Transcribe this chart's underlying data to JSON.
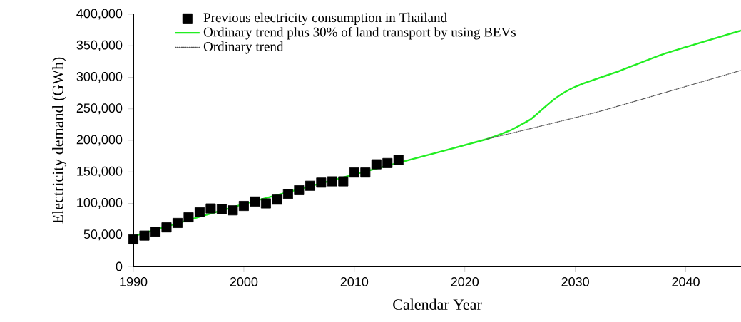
{
  "chart_data": {
    "type": "line",
    "xlabel": "Calendar Year",
    "ylabel": "Electricity demand (GWh)",
    "xlim": [
      1990,
      2045
    ],
    "ylim": [
      0,
      400000
    ],
    "xticks": [
      1990,
      2000,
      2010,
      2020,
      2030,
      2040
    ],
    "yticks": [
      0,
      {
        "value": 50000,
        "label": "50,000"
      },
      {
        "value": 100000,
        "label": "100,000"
      },
      {
        "value": 150000,
        "label": "150,000"
      },
      {
        "value": 200000,
        "label": "200,000"
      },
      {
        "value": 250000,
        "label": "250,000"
      },
      {
        "value": 300000,
        "label": "300,000"
      },
      {
        "value": 350000,
        "label": "350,000"
      },
      {
        "value": 400000,
        "label": "400,000"
      }
    ],
    "grid": false,
    "legend": "top left",
    "series": [
      {
        "name": "Previous electricity consumption in Thailand",
        "type": "scatter",
        "marker": "square",
        "color": "#000000",
        "x": [
          1990,
          1991,
          1992,
          1993,
          1994,
          1995,
          1996,
          1997,
          1998,
          1999,
          2000,
          2001,
          2002,
          2003,
          2004,
          2005,
          2006,
          2007,
          2008,
          2009,
          2010,
          2011,
          2012,
          2013,
          2014
        ],
        "values": [
          43000,
          49000,
          55000,
          62000,
          69000,
          78000,
          86000,
          92000,
          91000,
          89000,
          96000,
          103000,
          100000,
          106000,
          115000,
          121000,
          128000,
          133000,
          135000,
          135000,
          149000,
          149000,
          162000,
          164000,
          169000
        ]
      },
      {
        "name": "Ordinary trend plus 30% of land transport by using BEVs",
        "line_style": "solid",
        "color": "#22ee22",
        "x": [
          1990,
          2000,
          2010,
          2015,
          2022,
          2024,
          2025,
          2026,
          2027,
          2028,
          2029,
          2030,
          2031,
          2032,
          2034,
          2038,
          2045
        ],
        "values": [
          48000,
          99000,
          146000,
          169000,
          202000,
          215000,
          224000,
          234000,
          249000,
          264000,
          276000,
          285000,
          292000,
          298000,
          310000,
          337000,
          374000
        ]
      },
      {
        "name": "Ordinary trend",
        "line_style": "dotted",
        "color": "#555555",
        "x": [
          2022,
          2032,
          2045
        ],
        "values": [
          202000,
          245000,
          311000
        ]
      }
    ]
  }
}
